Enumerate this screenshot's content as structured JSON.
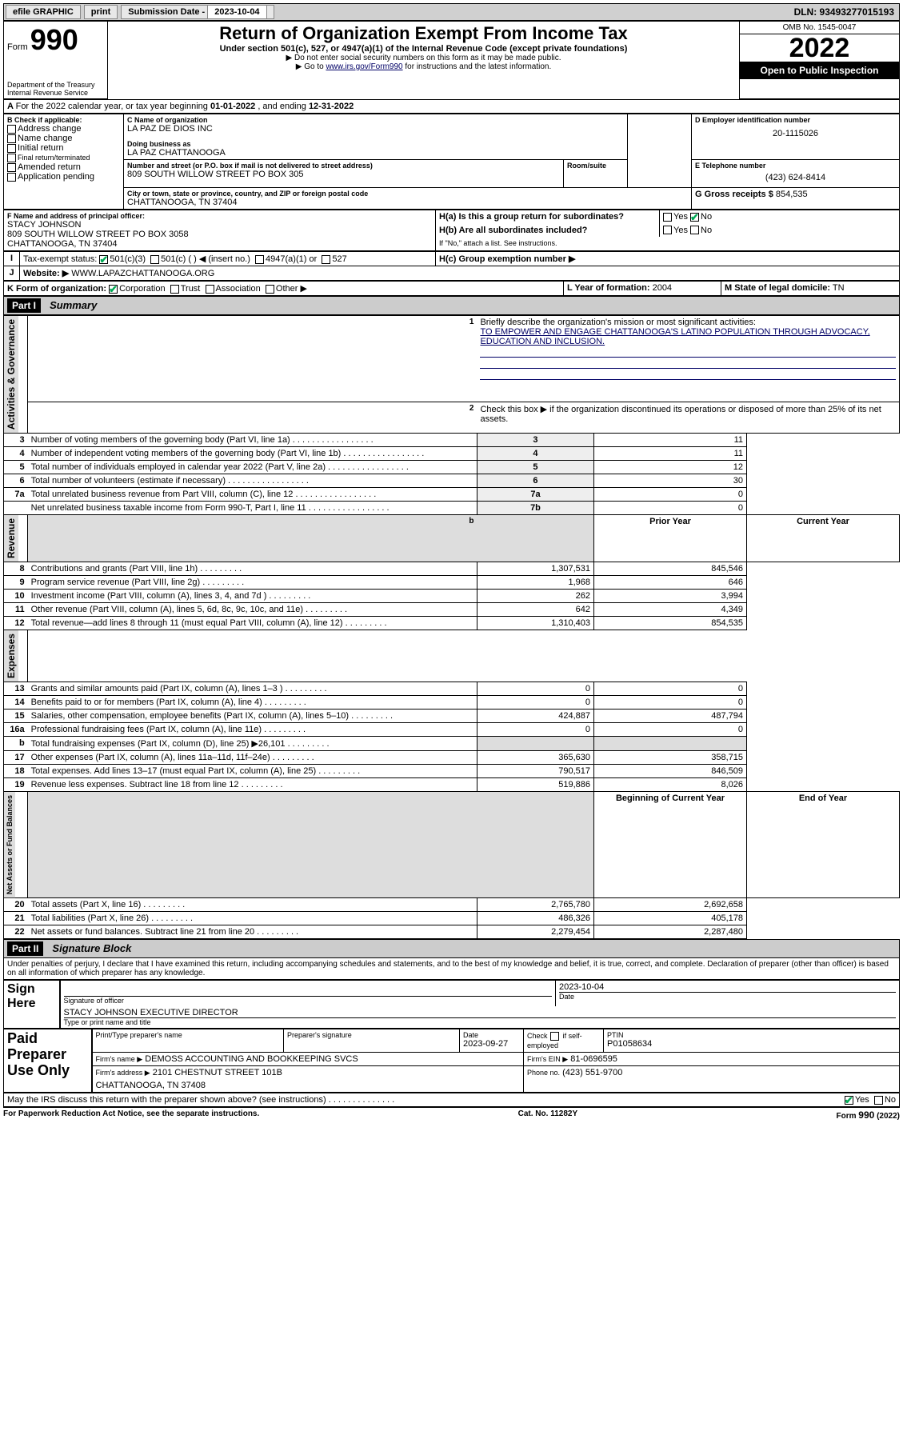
{
  "topbar": {
    "efile": "efile GRAPHIC",
    "print": "print",
    "sub_label": "Submission Date - ",
    "sub_date": "2023-10-04",
    "dln": "DLN: 93493277015193"
  },
  "header": {
    "form_word": "Form",
    "form_num": "990",
    "dept": "Department of the Treasury",
    "irs": "Internal Revenue Service",
    "title": "Return of Organization Exempt From Income Tax",
    "subtitle": "Under section 501(c), 527, or 4947(a)(1) of the Internal Revenue Code (except private foundations)",
    "instr1": "▶ Do not enter social security numbers on this form as it may be made public.",
    "instr2_pre": "▶ Go to ",
    "instr2_link": "www.irs.gov/Form990",
    "instr2_post": " for instructions and the latest information.",
    "omb": "OMB No. 1545-0047",
    "year": "2022",
    "open": "Open to Public Inspection"
  },
  "periodA": {
    "text_pre": "For the 2022 calendar year, or tax year beginning ",
    "begin": "01-01-2022",
    "mid": " , and ending ",
    "end": "12-31-2022"
  },
  "boxB": {
    "label": "B Check if applicable:",
    "addr": "Address change",
    "name": "Name change",
    "init": "Initial return",
    "final": "Final return/terminated",
    "amend": "Amended return",
    "app": "Application pending"
  },
  "boxC": {
    "name_lbl": "C Name of organization",
    "name": "LA PAZ DE DIOS INC",
    "dba_lbl": "Doing business as",
    "dba": "LA PAZ CHATTANOOGA",
    "street_lbl": "Number and street (or P.O. box if mail is not delivered to street address)",
    "room_lbl": "Room/suite",
    "street": "809 SOUTH WILLOW STREET PO BOX 305",
    "city_lbl": "City or town, state or province, country, and ZIP or foreign postal code",
    "city": "CHATTANOOGA, TN  37404"
  },
  "boxD": {
    "lbl": "D Employer identification number",
    "val": "20-1115026"
  },
  "boxE": {
    "lbl": "E Telephone number",
    "val": "(423) 624-8414"
  },
  "boxG": {
    "lbl": "G Gross receipts $",
    "val": "854,535"
  },
  "boxF": {
    "lbl": "F Name and address of principal officer:",
    "name": "STACY JOHNSON",
    "addr1": "809 SOUTH WILLOW STREET PO BOX 3058",
    "addr2": "CHATTANOOGA, TN  37404"
  },
  "boxH": {
    "a_lbl": "H(a)  Is this a group return for subordinates?",
    "yes": "Yes",
    "no": "No",
    "b_lbl": "H(b)  Are all subordinates included?",
    "b_note": "If \"No,\" attach a list. See instructions.",
    "c_lbl": "H(c)  Group exemption number ▶"
  },
  "boxI": {
    "lbl": "Tax-exempt status:",
    "c3": "501(c)(3)",
    "c": "501(c) (   ) ◀ (insert no.)",
    "a1": "4947(a)(1) or",
    "s527": "527"
  },
  "boxJ": {
    "lbl": "Website: ▶",
    "val": "WWW.LAPAZCHATTANOOGA.ORG"
  },
  "boxK": {
    "lbl": "K Form of organization:",
    "corp": "Corporation",
    "trust": "Trust",
    "assoc": "Association",
    "other": "Other ▶"
  },
  "boxL": {
    "lbl": "L Year of formation:",
    "val": "2004"
  },
  "boxM": {
    "lbl": "M State of legal domicile:",
    "val": "TN"
  },
  "part1": {
    "num": "Part I",
    "title": "Summary"
  },
  "summary": {
    "q1_lbl": "Briefly describe the organization's mission or most significant activities:",
    "q1_val": "TO EMPOWER AND ENGAGE CHATTANOOGA'S LATINO POPULATION THROUGH ADVOCACY, EDUCATION AND INCLUSION.",
    "q2": "Check this box ▶      if the organization discontinued its operations or disposed of more than 25% of its net assets.",
    "rows_gov": [
      {
        "n": "3",
        "d": "Number of voting members of the governing body (Part VI, line 1a)",
        "b": "3",
        "v": "11"
      },
      {
        "n": "4",
        "d": "Number of independent voting members of the governing body (Part VI, line 1b)",
        "b": "4",
        "v": "11"
      },
      {
        "n": "5",
        "d": "Total number of individuals employed in calendar year 2022 (Part V, line 2a)",
        "b": "5",
        "v": "12"
      },
      {
        "n": "6",
        "d": "Total number of volunteers (estimate if necessary)",
        "b": "6",
        "v": "30"
      },
      {
        "n": "7a",
        "d": "Total unrelated business revenue from Part VIII, column (C), line 12",
        "b": "7a",
        "v": "0"
      },
      {
        "n": "",
        "d": "Net unrelated business taxable income from Form 990-T, Part I, line 11",
        "b": "7b",
        "v": "0"
      }
    ],
    "col_prior": "Prior Year",
    "col_curr": "Current Year",
    "rows_rev": [
      {
        "n": "8",
        "d": "Contributions and grants (Part VIII, line 1h)",
        "p": "1,307,531",
        "c": "845,546"
      },
      {
        "n": "9",
        "d": "Program service revenue (Part VIII, line 2g)",
        "p": "1,968",
        "c": "646"
      },
      {
        "n": "10",
        "d": "Investment income (Part VIII, column (A), lines 3, 4, and 7d )",
        "p": "262",
        "c": "3,994"
      },
      {
        "n": "11",
        "d": "Other revenue (Part VIII, column (A), lines 5, 6d, 8c, 9c, 10c, and 11e)",
        "p": "642",
        "c": "4,349"
      },
      {
        "n": "12",
        "d": "Total revenue—add lines 8 through 11 (must equal Part VIII, column (A), line 12)",
        "p": "1,310,403",
        "c": "854,535"
      }
    ],
    "rows_exp": [
      {
        "n": "13",
        "d": "Grants and similar amounts paid (Part IX, column (A), lines 1–3 )",
        "p": "0",
        "c": "0"
      },
      {
        "n": "14",
        "d": "Benefits paid to or for members (Part IX, column (A), line 4)",
        "p": "0",
        "c": "0"
      },
      {
        "n": "15",
        "d": "Salaries, other compensation, employee benefits (Part IX, column (A), lines 5–10)",
        "p": "424,887",
        "c": "487,794"
      },
      {
        "n": "16a",
        "d": "Professional fundraising fees (Part IX, column (A), line 11e)",
        "p": "0",
        "c": "0"
      },
      {
        "n": "b",
        "d": "Total fundraising expenses (Part IX, column (D), line 25) ▶26,101",
        "p": "",
        "c": "",
        "gray": true
      },
      {
        "n": "17",
        "d": "Other expenses (Part IX, column (A), lines 11a–11d, 11f–24e)",
        "p": "365,630",
        "c": "358,715"
      },
      {
        "n": "18",
        "d": "Total expenses. Add lines 13–17 (must equal Part IX, column (A), line 25)",
        "p": "790,517",
        "c": "846,509"
      },
      {
        "n": "19",
        "d": "Revenue less expenses. Subtract line 18 from line 12",
        "p": "519,886",
        "c": "8,026"
      }
    ],
    "col_begin": "Beginning of Current Year",
    "col_end": "End of Year",
    "rows_net": [
      {
        "n": "20",
        "d": "Total assets (Part X, line 16)",
        "p": "2,765,780",
        "c": "2,692,658"
      },
      {
        "n": "21",
        "d": "Total liabilities (Part X, line 26)",
        "p": "486,326",
        "c": "405,178"
      },
      {
        "n": "22",
        "d": "Net assets or fund balances. Subtract line 21 from line 20",
        "p": "2,279,454",
        "c": "2,287,480"
      }
    ],
    "vtab_gov": "Activities & Governance",
    "vtab_rev": "Revenue",
    "vtab_exp": "Expenses",
    "vtab_net": "Net Assets or Fund Balances"
  },
  "part2": {
    "num": "Part II",
    "title": "Signature Block"
  },
  "perjury": "Under penalties of perjury, I declare that I have examined this return, including accompanying schedules and statements, and to the best of my knowledge and belief, it is true, correct, and complete. Declaration of preparer (other than officer) is based on all information of which preparer has any knowledge.",
  "sign": {
    "here": "Sign Here",
    "sig_lbl": "Signature of officer",
    "date_lbl": "Date",
    "date": "2023-10-04",
    "name": "STACY JOHNSON  EXECUTIVE DIRECTOR",
    "name_lbl": "Type or print name and title"
  },
  "paid": {
    "lbl": "Paid Preparer Use Only",
    "r1": {
      "c1": "Print/Type preparer's name",
      "c2": "Preparer's signature",
      "c3_lbl": "Date",
      "c3": "2023-09-27",
      "c4_lbl": "Check",
      "c4_sub": "if self-employed",
      "c5_lbl": "PTIN",
      "c5": "P01058634"
    },
    "r2": {
      "c1_lbl": "Firm's name    ▶",
      "c1": "DEMOSS ACCOUNTING AND BOOKKEEPING SVCS",
      "c2_lbl": "Firm's EIN ▶",
      "c2": "81-0696595"
    },
    "r3": {
      "c1_lbl": "Firm's address ▶",
      "c1a": "2101 CHESTNUT STREET 101B",
      "c1b": "CHATTANOOGA, TN  37408",
      "c2_lbl": "Phone no.",
      "c2": "(423) 551-9700"
    }
  },
  "discuss": {
    "q": "May the IRS discuss this return with the preparer shown above? (see instructions)",
    "yes": "Yes",
    "no": "No"
  },
  "footer": {
    "l": "For Paperwork Reduction Act Notice, see the separate instructions.",
    "c": "Cat. No. 11282Y",
    "r": "Form 990 (2022)"
  }
}
